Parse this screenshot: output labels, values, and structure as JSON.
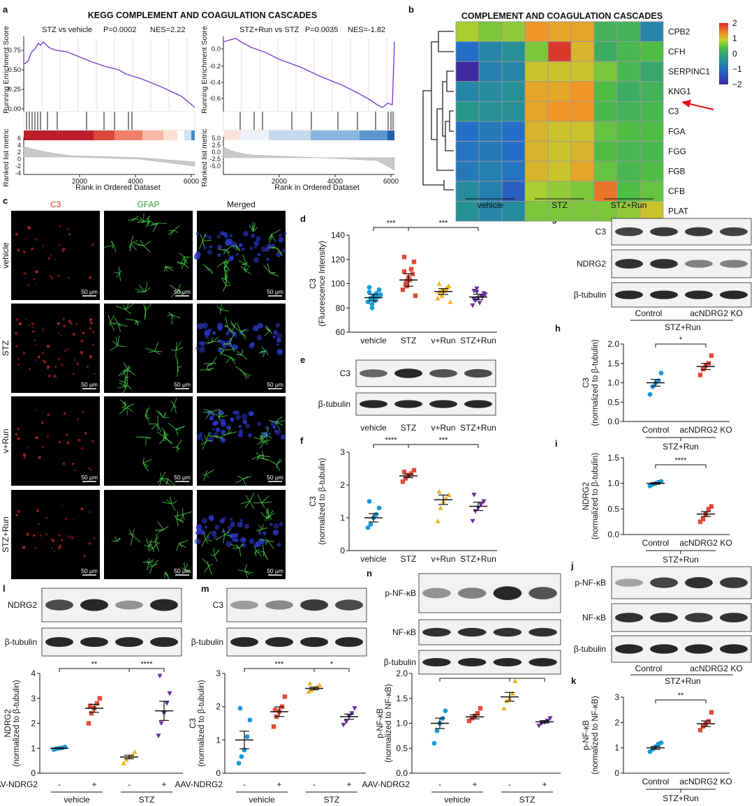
{
  "panels": {
    "a": {
      "letter": "a",
      "title": "KEGG COMPLEMENT AND COAGULATION CASCADES",
      "left": {
        "label": "STZ vs vehicle",
        "p": "P=0.0002",
        "nes": "NES=2.22",
        "yticks": [
          "0.75",
          "0.50",
          "0.25",
          "0.00"
        ]
      },
      "right": {
        "label": "STZ+Run vs STZ",
        "p": "P=0.0035",
        "nes": "NES=-1.82",
        "yticks": [
          "0.0",
          "-0.2",
          "-0.4",
          "-0.6"
        ]
      },
      "ylabel_es": "Running Enrichment Score",
      "ylabel_rank": "Ranked list metric",
      "xlabel": "Rank in Ordered Dataset",
      "xticks": [
        "2000",
        "4000",
        "6000"
      ],
      "rank_yticks_left": [
        "6",
        "4",
        "2",
        "0",
        "-2",
        "-4"
      ],
      "rank_yticks_right": [
        "5.0",
        "2.5",
        "0.0",
        "-2.5",
        "-5.0"
      ],
      "es_color": "#7a3fcf"
    },
    "b": {
      "letter": "b",
      "title": "COMPLEMENT AND COAGULATION CASCADES",
      "genes": [
        "CPB2",
        "CFH",
        "SERPINC1",
        "KNG1",
        "C3",
        "FGA",
        "FGG",
        "FGB",
        "CFB",
        "PLAT"
      ],
      "groups": [
        "vehicle",
        "STZ",
        "STZ+Run"
      ],
      "scale": [
        "2",
        "1",
        "0",
        "−1",
        "−2"
      ],
      "matrix": [
        [
          0.8,
          0.6,
          0.7,
          1.3,
          1.2,
          1.2,
          0.2,
          0.2,
          -0.6
        ],
        [
          -1.0,
          -0.6,
          -0.4,
          0.6,
          1.9,
          1.1,
          0.1,
          0.3,
          0.4
        ],
        [
          -2.0,
          -0.7,
          -0.6,
          1.0,
          1.0,
          1.0,
          0.6,
          0.3,
          0.0
        ],
        [
          -0.6,
          -0.5,
          -0.4,
          1.2,
          1.2,
          1.3,
          0.4,
          0.1,
          0.2
        ],
        [
          -0.3,
          -0.4,
          -0.4,
          1.2,
          1.3,
          1.3,
          0.3,
          0.2,
          0.3
        ],
        [
          -1.0,
          -0.8,
          -1.0,
          1.1,
          1.0,
          1.0,
          0.5,
          0.4,
          0.4
        ],
        [
          -0.9,
          -0.8,
          -1.0,
          1.1,
          1.0,
          1.1,
          0.4,
          0.3,
          0.3
        ],
        [
          -0.8,
          -0.7,
          -0.9,
          1.1,
          1.0,
          1.2,
          0.5,
          0.3,
          0.4
        ],
        [
          -0.5,
          -0.7,
          -1.2,
          0.8,
          0.7,
          0.6,
          1.5,
          0.4,
          0.5
        ],
        [
          -0.4,
          -0.6,
          -0.5,
          0.6,
          0.6,
          0.6,
          0.6,
          0.7,
          1.0
        ]
      ]
    },
    "c": {
      "letter": "c",
      "channels": [
        "C3",
        "GFAP",
        "Merged"
      ],
      "channel_colors": [
        "#d63030",
        "#2aa02a",
        "#111111"
      ],
      "rows": [
        "vehicle",
        "STZ",
        "v+Run",
        "STZ+Run"
      ],
      "scale_bar": "50 μm"
    },
    "d": {
      "letter": "d",
      "ylabel": [
        "C3",
        "(Fluorescence Intensity)"
      ],
      "categories": [
        "vehicle",
        "STZ",
        "v+Run",
        "STZ+Run"
      ],
      "yticks": [
        "140",
        "120",
        "100",
        "80",
        "60"
      ],
      "sig": [
        "***",
        "***"
      ]
    },
    "e": {
      "letter": "e",
      "bands": [
        "C3",
        "β-tubulin"
      ],
      "lanes": [
        "vehicle",
        "STZ",
        "v+Run",
        "STZ+Run"
      ]
    },
    "f": {
      "letter": "f",
      "ylabel": [
        "C3",
        "(normalized to β-tubulin)"
      ],
      "categories": [
        "vehicle",
        "STZ",
        "v+Run",
        "STZ+Run"
      ],
      "yticks": [
        "3",
        "2",
        "1",
        "0"
      ],
      "sig": [
        "****",
        "***"
      ]
    },
    "g": {
      "letter": "g",
      "bands": [
        "C3",
        "NDRG2",
        "β-tubulin"
      ],
      "lanes": [
        "Control",
        "acNDRG2 KO"
      ],
      "group": "STZ+Run"
    },
    "h": {
      "letter": "h",
      "ylabel": [
        "C3",
        "(normalized to β-tubulin)"
      ],
      "categories": [
        "Control",
        "acNDRG2 KO"
      ],
      "group": "STZ+Run",
      "yticks": [
        "2.0",
        "1.5",
        "1.0",
        "0.5",
        "0.0"
      ],
      "sig": [
        "*"
      ]
    },
    "i": {
      "letter": "i",
      "ylabel": [
        "NDRG2",
        "(normalized to β-tubulin)"
      ],
      "categories": [
        "Control",
        "acNDRG2 KO"
      ],
      "group": "STZ+Run",
      "yticks": [
        "1.5",
        "1.0",
        "0.5",
        "0.0"
      ],
      "sig": [
        "****"
      ]
    },
    "j": {
      "letter": "j",
      "bands": [
        "p-NF-κB",
        "NF-κB",
        "β-tubulin"
      ],
      "lanes": [
        "Control",
        "acNDRG2 KO"
      ],
      "group": "STZ+Run"
    },
    "k": {
      "letter": "k",
      "ylabel": [
        "p-NF-κB",
        "(normalized to NF-κB)"
      ],
      "categories": [
        "Control",
        "acNDRG2 KO"
      ],
      "group": "STZ+Run",
      "yticks": [
        "3",
        "2",
        "1",
        "0"
      ],
      "sig": [
        "**"
      ]
    },
    "l": {
      "letter": "l",
      "bands": [
        "NDRG2",
        "β-tubulin"
      ],
      "ylabel": [
        "NDRG2",
        "(normalized to β-tubulin)"
      ],
      "yticks": [
        "4",
        "3",
        "2",
        "1",
        "0"
      ],
      "sig": [
        "**",
        "****"
      ]
    },
    "m": {
      "letter": "m",
      "bands": [
        "C3",
        "β-tubulin"
      ],
      "ylabel": [
        "C3",
        "(normalized to β-tubulin)"
      ],
      "yticks": [
        "3",
        "2",
        "1",
        "0"
      ],
      "sig": [
        "***",
        "*"
      ]
    },
    "n": {
      "letter": "n",
      "bands": [
        "p-NF-κB",
        "NF-κB",
        "β-tubulin"
      ],
      "ylabel": [
        "p-NF-κB",
        "(normalized to NF-κB)"
      ],
      "yticks": [
        "2.0",
        "1.5",
        "1.0",
        "0.5",
        "0.0"
      ],
      "sig": [
        "**",
        "**"
      ]
    },
    "aav": {
      "label": "AAV-NDRG2",
      "signs": [
        "-",
        "+",
        "-",
        "+"
      ],
      "groups": [
        "vehicle",
        "STZ"
      ]
    }
  },
  "colors": {
    "vehicle": "#1a9ad6",
    "STZ": "#e34a3a",
    "v_run": "#f0b323",
    "STZ_run": "#6a2f9e"
  },
  "chart_data": [
    {
      "panel": "d",
      "type": "scatter",
      "categories": [
        "vehicle",
        "STZ",
        "v+Run",
        "STZ+Run"
      ],
      "series": [
        {
          "values": [
            [
              85,
              88,
              90,
              92,
              95,
              97,
              83,
              86,
              89,
              91,
              93,
              80
            ]
          ]
        },
        {
          "values": [
            [
              95,
              100,
              105,
              112,
              118,
              122,
              98,
              103,
              108,
              90,
              110,
              102
            ]
          ]
        },
        {
          "values": [
            [
              88,
              92,
              94,
              96,
              98,
              100,
              90,
              94,
              97,
              85,
              93,
              95
            ]
          ]
        },
        {
          "values": [
            [
              82,
              86,
              88,
              90,
              92,
              94,
              96,
              84,
              89,
              91,
              87,
              93
            ]
          ]
        }
      ],
      "means": [
        88.5,
        103,
        93.5,
        89
      ],
      "ylim": [
        60,
        140
      ]
    },
    {
      "panel": "f",
      "type": "scatter",
      "categories": [
        "vehicle",
        "STZ",
        "v+Run",
        "STZ+Run"
      ],
      "values": [
        [
          0.7,
          0.8,
          1.0,
          1.1,
          1.3,
          1.5
        ],
        [
          2.1,
          2.2,
          2.3,
          2.35,
          2.45,
          2.4
        ],
        [
          0.9,
          1.3,
          1.5,
          1.6,
          1.7,
          1.8
        ],
        [
          0.9,
          1.2,
          1.3,
          1.4,
          1.5,
          1.7
        ]
      ],
      "means": [
        1.0,
        2.28,
        1.55,
        1.35
      ],
      "ylim": [
        0,
        3
      ]
    },
    {
      "panel": "h",
      "type": "scatter",
      "categories": [
        "Control",
        "acNDRG2 KO"
      ],
      "values": [
        [
          0.7,
          0.9,
          1.0,
          1.05,
          1.25
        ],
        [
          1.2,
          1.35,
          1.45,
          1.5,
          1.7
        ]
      ],
      "means": [
        1.0,
        1.42
      ],
      "ylim": [
        0,
        2.0
      ]
    },
    {
      "panel": "i",
      "type": "scatter",
      "categories": [
        "Control",
        "acNDRG2 KO"
      ],
      "values": [
        [
          0.95,
          0.98,
          1.0,
          1.02,
          1.04
        ],
        [
          0.25,
          0.3,
          0.4,
          0.5,
          0.55
        ]
      ],
      "means": [
        1.0,
        0.4
      ],
      "ylim": [
        0,
        1.5
      ]
    },
    {
      "panel": "k",
      "type": "scatter",
      "categories": [
        "Control",
        "acNDRG2 KO"
      ],
      "values": [
        [
          0.85,
          0.95,
          1.05,
          1.15,
          1.2
        ],
        [
          1.7,
          1.85,
          1.95,
          2.05,
          2.4
        ]
      ],
      "means": [
        1.0,
        1.95
      ],
      "ylim": [
        0,
        3
      ]
    },
    {
      "panel": "l",
      "type": "scatter",
      "categories": [
        "vehicle -",
        "vehicle +",
        "STZ -",
        "STZ +"
      ],
      "values": [
        [
          0.95,
          0.98,
          1.0,
          1.02,
          1.05
        ],
        [
          2.0,
          2.4,
          2.6,
          2.8,
          3.0,
          2.7
        ],
        [
          0.4,
          0.55,
          0.65,
          0.7,
          0.85
        ],
        [
          1.5,
          2.0,
          2.4,
          2.8,
          3.2,
          3.9
        ]
      ],
      "means": [
        1.0,
        2.6,
        0.65,
        2.5
      ],
      "ylim": [
        0,
        4
      ]
    },
    {
      "panel": "m",
      "type": "scatter",
      "categories": [
        "vehicle -",
        "vehicle +",
        "STZ -",
        "STZ +"
      ],
      "values": [
        [
          0.3,
          0.5,
          0.7,
          1.1,
          1.6,
          1.95
        ],
        [
          1.4,
          1.7,
          1.85,
          2.0,
          2.3,
          1.9
        ],
        [
          2.45,
          2.5,
          2.55,
          2.6,
          2.65,
          2.7
        ],
        [
          1.45,
          1.55,
          1.7,
          1.8,
          1.95
        ]
      ],
      "means": [
        1.0,
        1.85,
        2.55,
        1.7
      ],
      "ylim": [
        0,
        3
      ]
    },
    {
      "panel": "n",
      "type": "scatter",
      "categories": [
        "vehicle -",
        "vehicle +",
        "STZ -",
        "STZ +"
      ],
      "values": [
        [
          0.6,
          0.85,
          1.0,
          1.1,
          1.25
        ],
        [
          1.05,
          1.1,
          1.15,
          1.2,
          1.3
        ],
        [
          1.3,
          1.45,
          1.5,
          1.6,
          1.85
        ],
        [
          0.95,
          1.0,
          1.02,
          1.05,
          1.1
        ]
      ],
      "means": [
        1.0,
        1.13,
        1.53,
        1.03
      ],
      "ylim": [
        0,
        2.0
      ]
    }
  ]
}
